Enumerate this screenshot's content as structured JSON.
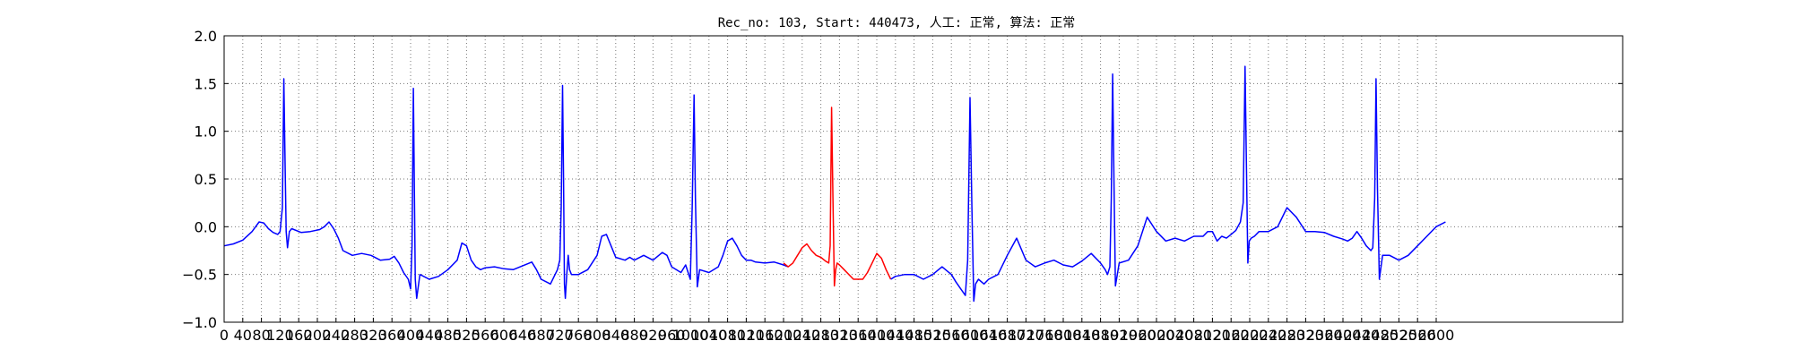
{
  "chart_data": {
    "type": "line",
    "title": "Rec_no: 103, Start: 440473, 人工: 正常, 算法: 正常",
    "xlabel": "",
    "ylabel": "",
    "xlim": [
      0,
      3000
    ],
    "ylim": [
      -1.0,
      2.0
    ],
    "grid": true,
    "grid_style": "dotted",
    "colors": {
      "series": "#0000ff",
      "highlight": "#ff0000",
      "grid": "#777777",
      "axes": "#000000"
    },
    "y_ticks": [
      -1.0,
      -0.5,
      0.0,
      0.5,
      1.0,
      1.5,
      2.0
    ],
    "y_tick_labels": [
      "−1.0",
      "−0.5",
      "0.0",
      "0.5",
      "1.0",
      "1.5",
      "2.0"
    ],
    "x_ticks": [
      0,
      40,
      80,
      120,
      160,
      200,
      240,
      280,
      320,
      360,
      400,
      440,
      480,
      520,
      560,
      600,
      640,
      680,
      720,
      760,
      800,
      840,
      880,
      920,
      960,
      1000,
      1040,
      1080,
      1120,
      1160,
      1200,
      1240,
      1280,
      1320,
      1360,
      1400,
      1440,
      1480,
      1520,
      1560,
      1600,
      1640,
      1680,
      1720,
      1760,
      1800,
      1840,
      1880,
      1920,
      1960,
      2000,
      2040,
      2080,
      2120,
      2160,
      2200,
      2240,
      2280,
      2320,
      2360,
      2400,
      2440,
      2480,
      2520,
      2560,
      2600
    ],
    "x_tick_labels": [
      "0",
      "40",
      "80",
      "120",
      "160",
      "200",
      "240",
      "280",
      "320",
      "360",
      "400",
      "440",
      "480",
      "520",
      "560",
      "600",
      "640",
      "680",
      "720",
      "760",
      "800",
      "840",
      "880",
      "920",
      "960",
      "1000",
      "1040",
      "1080",
      "1120",
      "1160",
      "1200",
      "1240",
      "1280",
      "1320",
      "1360",
      "1400",
      "1440",
      "1480",
      "1520",
      "1560",
      "1600",
      "1640",
      "1680",
      "1720",
      "1760",
      "1800",
      "1840",
      "1880",
      "1920",
      "1960",
      "2000",
      "2040",
      "2080",
      "2120",
      "2160",
      "2200",
      "2240",
      "2280",
      "2320",
      "2360",
      "2400",
      "2440",
      "2480",
      "2520",
      "2560",
      "2600"
    ],
    "series": [
      {
        "color": "#0000ff",
        "x": [
          0,
          20,
          40,
          60,
          75,
          85,
          95,
          105,
          115,
          120,
          125,
          128,
          131,
          133,
          136,
          140,
          145,
          165,
          185,
          205,
          215,
          225,
          235,
          245,
          255,
          275,
          295,
          315,
          335,
          355,
          365,
          375,
          385,
          395,
          400,
          403,
          406,
          408,
          410,
          413,
          420,
          440,
          460,
          480,
          500,
          510,
          520,
          530,
          540,
          550,
          560,
          580,
          600,
          620,
          660,
          670,
          680,
          700,
          715,
          720,
          723,
          726,
          728,
          730,
          732,
          735,
          738,
          741,
          745,
          760,
          780,
          800,
          810,
          820,
          830,
          840,
          860,
          870,
          880,
          900,
          920,
          940,
          950,
          960,
          980,
          990,
          1000,
          1004,
          1008,
          1011,
          1015,
          1020,
          1040,
          1060,
          1070,
          1080,
          1090,
          1100,
          1110,
          1120,
          1130,
          1140,
          1160,
          1180,
          1200,
          1210
        ],
        "y": [
          -0.2,
          -0.18,
          -0.14,
          -0.05,
          0.05,
          0.04,
          -0.02,
          -0.06,
          -0.08,
          -0.05,
          0.2,
          1.55,
          0.6,
          -0.05,
          -0.22,
          -0.05,
          -0.02,
          -0.06,
          -0.05,
          -0.03,
          0.0,
          0.05,
          -0.02,
          -0.12,
          -0.25,
          -0.3,
          -0.28,
          -0.3,
          -0.35,
          -0.34,
          -0.31,
          -0.38,
          -0.48,
          -0.55,
          -0.65,
          -0.2,
          1.45,
          0.4,
          -0.55,
          -0.75,
          -0.5,
          -0.55,
          -0.52,
          -0.45,
          -0.35,
          -0.17,
          -0.2,
          -0.35,
          -0.42,
          -0.45,
          -0.43,
          -0.42,
          -0.44,
          -0.45,
          -0.37,
          -0.45,
          -0.55,
          -0.6,
          -0.45,
          -0.35,
          0.2,
          1.48,
          0.5,
          -0.6,
          -0.75,
          -0.5,
          -0.3,
          -0.45,
          -0.5,
          -0.5,
          -0.45,
          -0.3,
          -0.1,
          -0.08,
          -0.2,
          -0.32,
          -0.35,
          -0.32,
          -0.35,
          -0.3,
          -0.35,
          -0.27,
          -0.3,
          -0.42,
          -0.48,
          -0.4,
          -0.55,
          0.2,
          1.38,
          0.3,
          -0.63,
          -0.45,
          -0.48,
          -0.42,
          -0.3,
          -0.15,
          -0.12,
          -0.2,
          -0.3,
          -0.35,
          -0.35,
          -0.37,
          -0.38,
          -0.37,
          -0.4,
          -0.42
        ]
      },
      {
        "color": "#ff0000",
        "x": [
          1200,
          1210,
          1220,
          1230,
          1240,
          1250,
          1260,
          1270,
          1280,
          1290,
          1297,
          1300,
          1303,
          1306,
          1309,
          1312,
          1315,
          1320,
          1330,
          1350,
          1370,
          1380,
          1390,
          1400,
          1410,
          1420,
          1430
        ],
        "y": [
          -0.38,
          -0.42,
          -0.38,
          -0.3,
          -0.22,
          -0.18,
          -0.25,
          -0.3,
          -0.32,
          -0.36,
          -0.38,
          -0.2,
          1.25,
          0.3,
          -0.62,
          -0.45,
          -0.38,
          -0.4,
          -0.45,
          -0.55,
          -0.55,
          -0.48,
          -0.38,
          -0.28,
          -0.33,
          -0.45,
          -0.55
        ]
      },
      {
        "color": "#0000ff",
        "x": [
          1430,
          1440,
          1460,
          1480,
          1500,
          1520,
          1540,
          1560,
          1570,
          1580,
          1590,
          1595,
          1600,
          1604,
          1608,
          1612,
          1618,
          1630,
          1640,
          1660,
          1680,
          1700,
          1720,
          1740,
          1760,
          1780,
          1800,
          1820,
          1840,
          1860,
          1880,
          1890,
          1895,
          1900,
          1903,
          1906,
          1909,
          1912,
          1916,
          1920,
          1940,
          1960,
          1980,
          2000,
          2020,
          2040,
          2060,
          2080,
          2100,
          2110,
          2120,
          2130,
          2140,
          2150,
          2160,
          2170,
          2180,
          2186,
          2190,
          2193,
          2196,
          2199,
          2203,
          2210,
          2220,
          2240,
          2260,
          2280,
          2300,
          2320,
          2340,
          2360,
          2380,
          2400,
          2410,
          2420,
          2430,
          2440,
          2450,
          2460,
          2464,
          2468,
          2471,
          2474,
          2478,
          2485,
          2500,
          2520,
          2540,
          2560,
          2580,
          2600,
          2620
        ],
        "y": [
          -0.55,
          -0.52,
          -0.5,
          -0.5,
          -0.55,
          -0.5,
          -0.42,
          -0.5,
          -0.58,
          -0.65,
          -0.72,
          -0.35,
          1.35,
          0.2,
          -0.78,
          -0.6,
          -0.55,
          -0.6,
          -0.55,
          -0.5,
          -0.3,
          -0.12,
          -0.35,
          -0.42,
          -0.38,
          -0.35,
          -0.4,
          -0.42,
          -0.36,
          -0.28,
          -0.38,
          -0.45,
          -0.5,
          -0.42,
          0.3,
          1.6,
          0.4,
          -0.62,
          -0.5,
          -0.38,
          -0.35,
          -0.2,
          0.1,
          -0.05,
          -0.15,
          -0.12,
          -0.15,
          -0.1,
          -0.1,
          -0.05,
          -0.05,
          -0.15,
          -0.1,
          -0.12,
          -0.08,
          -0.04,
          0.05,
          0.25,
          1.68,
          0.6,
          -0.38,
          -0.15,
          -0.12,
          -0.1,
          -0.05,
          -0.05,
          0.0,
          0.2,
          0.1,
          -0.05,
          -0.05,
          -0.06,
          -0.1,
          -0.13,
          -0.15,
          -0.12,
          -0.05,
          -0.12,
          -0.2,
          -0.25,
          -0.22,
          0.3,
          1.55,
          0.4,
          -0.55,
          -0.3,
          -0.3,
          -0.35,
          -0.3,
          -0.2,
          -0.1,
          0.0,
          0.05
        ]
      }
    ]
  }
}
